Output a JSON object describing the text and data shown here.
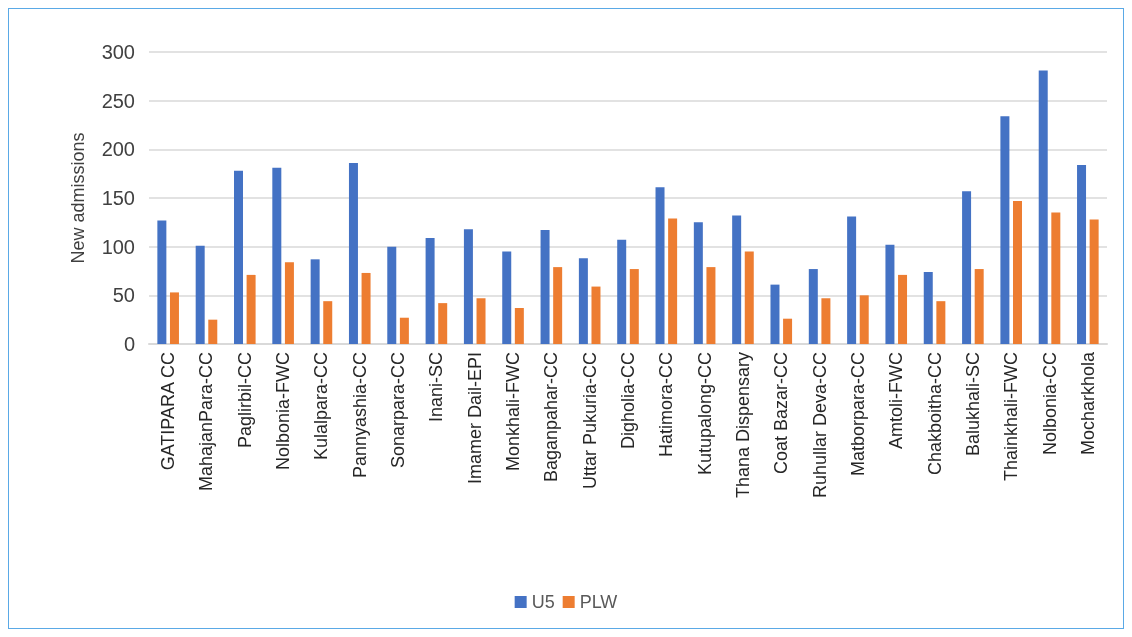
{
  "chart_data": {
    "type": "bar",
    "ylabel": "New admissions",
    "categories": [
      "GATIPARA CC",
      "MahajanPara-CC",
      "Paglirbil-CC",
      "Nolbonia-FWC",
      "Kulalpara-CC",
      "Pannyashia-CC",
      "Sonarpara-CC",
      "Inani-SC",
      "Imamer Dail-EPI",
      "Monkhali-FWC",
      "Baganpahar-CC",
      "Uttar Pukuria-CC",
      "Digholia-CC",
      "Hatimora-CC",
      "Kutupalong-CC",
      "Thana Dispensary",
      "Coat Bazar-CC",
      "Ruhullar Deva-CC",
      "Matborpara-CC",
      "Amtoli-FWC",
      "Chakboitha-CC",
      "Balukhali-SC",
      "Thainkhali-FWC",
      "Nolbonia-CC",
      "Mocharkhola"
    ],
    "series": [
      {
        "name": "U5",
        "color": "#4472c4",
        "values": [
          127,
          101,
          178,
          181,
          87,
          186,
          100,
          109,
          118,
          95,
          117,
          88,
          107,
          161,
          125,
          132,
          61,
          77,
          131,
          102,
          74,
          157,
          234,
          281,
          184
        ]
      },
      {
        "name": "PLW",
        "color": "#ed7d31",
        "values": [
          53,
          25,
          71,
          84,
          44,
          73,
          27,
          42,
          47,
          37,
          79,
          59,
          77,
          129,
          79,
          95,
          26,
          47,
          50,
          71,
          44,
          77,
          147,
          135,
          128
        ]
      }
    ],
    "ylim": [
      0,
      300
    ],
    "yticks": [
      0,
      50,
      100,
      150,
      200,
      250,
      300
    ],
    "grid": "y",
    "legend": "bottom"
  }
}
